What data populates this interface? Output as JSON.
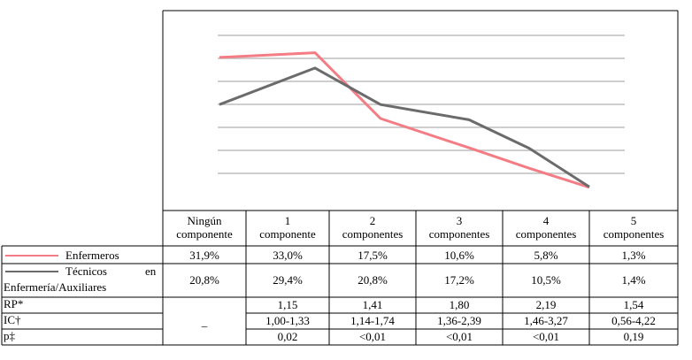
{
  "chart_data": {
    "type": "line",
    "categories": [
      "Ningún componente",
      "1 componente",
      "2 componentes",
      "3 componentes",
      "4 componentes",
      "5 componentes"
    ],
    "series": [
      {
        "name": "Enfermeros",
        "color": "#f47c84",
        "values": [
          31.9,
          33.0,
          17.5,
          10.6,
          5.8,
          1.3
        ],
        "value_labels": [
          "31,9%",
          "33,0%",
          "17,5%",
          "10,6%",
          "5,8%",
          "1,3%"
        ]
      },
      {
        "name": "Técnicos en Enfermería/Auxiliares",
        "color": "#6b6b6b",
        "values": [
          20.8,
          29.4,
          20.8,
          17.2,
          10.5,
          1.4
        ],
        "value_labels": [
          "20,8%",
          "29,4%",
          "20,8%",
          "17,2%",
          "10,5%",
          "1,4%"
        ]
      }
    ],
    "title": "",
    "xlabel": "",
    "ylabel": "",
    "grid": true,
    "gridline_count": 7
  },
  "table": {
    "header": [
      [
        "Ningún",
        "componente"
      ],
      [
        "1",
        "componente"
      ],
      [
        "2",
        "componentes"
      ],
      [
        "3",
        "componentes"
      ],
      [
        "4",
        "componentes"
      ],
      [
        "5",
        "componentes"
      ]
    ],
    "legend_enfermeros": "Enfermeros",
    "legend_tecnicos_a": "Técnicos",
    "legend_tecnicos_b": "en",
    "legend_tecnicos_c": "Enfermería/Auxiliares",
    "rows": [
      {
        "label": "RP*",
        "values": [
          "1,15",
          "1,41",
          "1,80",
          "2,19",
          "1,54"
        ]
      },
      {
        "label": "IC†",
        "values": [
          "1,00-1,33",
          "1,14-1,74",
          "1,36-2,39",
          "1,46-3,27",
          "0,56-4,22"
        ]
      },
      {
        "label": "p‡",
        "values": [
          "0,02",
          "<0,01",
          "<0,01",
          "<0,01",
          "0,19"
        ]
      }
    ],
    "merged_value": "_"
  }
}
